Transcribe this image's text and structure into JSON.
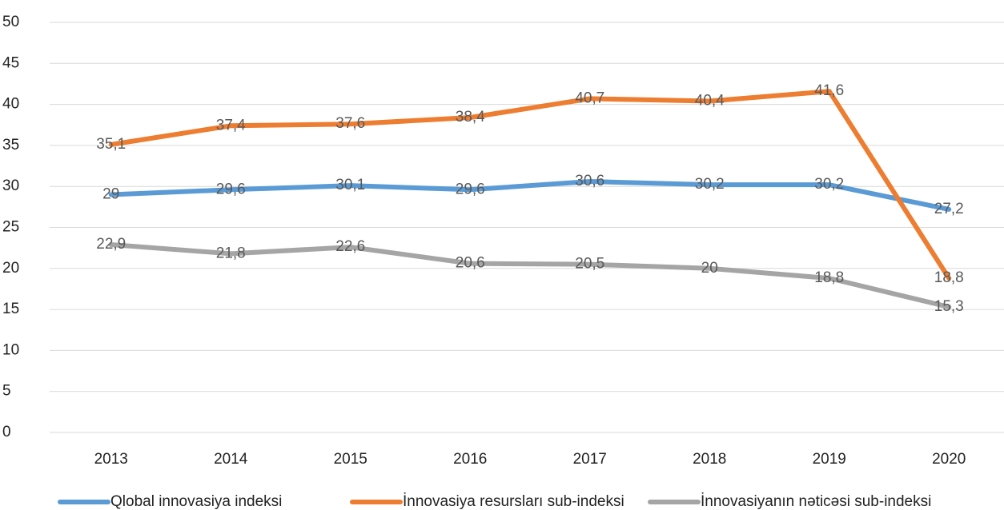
{
  "chart_data": {
    "type": "line",
    "categories": [
      "2013",
      "2014",
      "2015",
      "2016",
      "2017",
      "2018",
      "2019",
      "2020"
    ],
    "series": [
      {
        "name": "Qlobal innovasiya indeksi",
        "color": "#5b9bd5",
        "values": [
          29,
          29.6,
          30.1,
          29.6,
          30.6,
          30.2,
          30.2,
          27.2
        ],
        "value_labels": [
          "29",
          "29,6",
          "30,1",
          "29,6",
          "30,6",
          "30,2",
          "30,2",
          "27,2"
        ]
      },
      {
        "name": "İnnovasiya resursları sub-indeksi",
        "color": "#ed7d31",
        "values": [
          35.1,
          37.4,
          37.6,
          38.4,
          40.7,
          40.4,
          41.6,
          18.8
        ],
        "value_labels": [
          "35,1",
          "37,4",
          "37,6",
          "38,4",
          "40,7",
          "40,4",
          "41,6",
          "18,8"
        ]
      },
      {
        "name": "İnnovasiyanın nəticəsi sub-indeksi",
        "color": "#a5a5a5",
        "values": [
          22.9,
          21.8,
          22.6,
          20.6,
          20.5,
          20,
          18.8,
          15.3
        ],
        "value_labels": [
          "22,9",
          "21,8",
          "22,6",
          "20,6",
          "20,5",
          "20",
          "18,8",
          "15,3"
        ]
      }
    ],
    "ylim": [
      0,
      50
    ],
    "yticks": [
      0,
      5,
      10,
      15,
      20,
      25,
      30,
      35,
      40,
      45,
      50
    ],
    "grid": true,
    "legend": "bottom"
  }
}
